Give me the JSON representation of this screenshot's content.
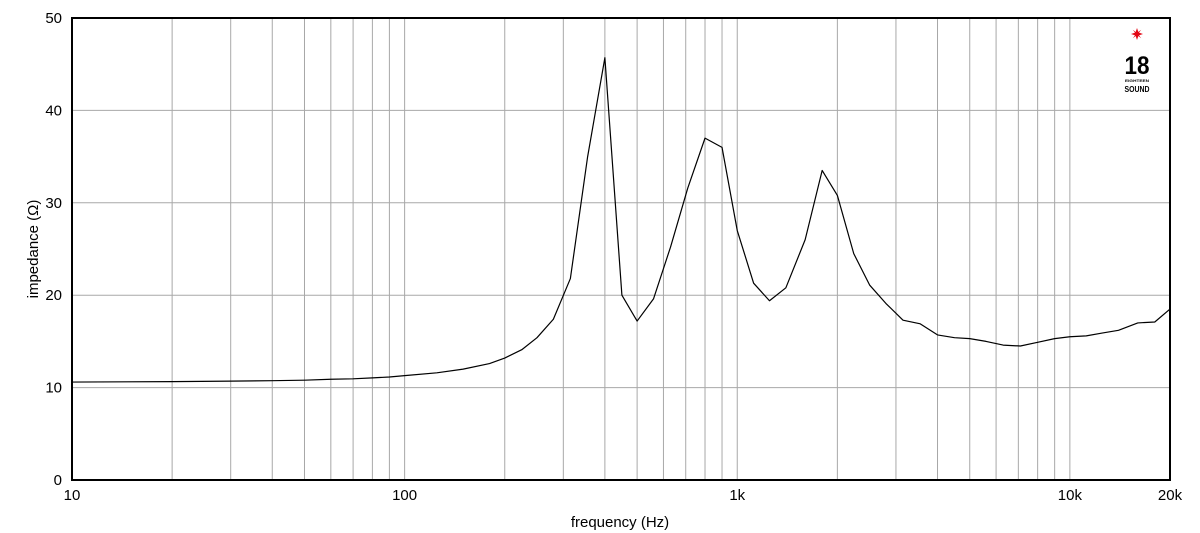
{
  "chart_data": {
    "type": "line",
    "xlabel": "frequency (Hz)",
    "ylabel": "impedance (Ω)",
    "x_scale": "log",
    "xlim": [
      10,
      20000
    ],
    "ylim": [
      0,
      50
    ],
    "grid": true,
    "x_ticks": [
      {
        "value": 10,
        "label": "10"
      },
      {
        "value": 100,
        "label": "100"
      },
      {
        "value": 1000,
        "label": "1k"
      },
      {
        "value": 10000,
        "label": "10k"
      },
      {
        "value": 20000,
        "label": "20k"
      }
    ],
    "y_ticks": [
      {
        "value": 0,
        "label": "0"
      },
      {
        "value": 10,
        "label": "10"
      },
      {
        "value": 20,
        "label": "20"
      },
      {
        "value": 30,
        "label": "30"
      },
      {
        "value": 40,
        "label": "40"
      },
      {
        "value": 50,
        "label": "50"
      }
    ],
    "x_grid": [
      20,
      30,
      40,
      50,
      60,
      70,
      80,
      90,
      100,
      200,
      300,
      400,
      500,
      600,
      700,
      800,
      900,
      1000,
      2000,
      3000,
      4000,
      5000,
      6000,
      7000,
      8000,
      9000,
      10000
    ],
    "y_grid": [
      10,
      20,
      30,
      40
    ],
    "series": [
      {
        "color": "#000000",
        "x": [
          10,
          20,
          30,
          40,
          50,
          60,
          70,
          80,
          90,
          100,
          125,
          150,
          180,
          200,
          225,
          250,
          280,
          315,
          355,
          400,
          450,
          500,
          560,
          630,
          710,
          800,
          900,
          1000,
          1120,
          1250,
          1400,
          1600,
          1800,
          2000,
          2240,
          2500,
          2800,
          3150,
          3550,
          4000,
          4500,
          5000,
          5600,
          6300,
          7100,
          8000,
          9000,
          10000,
          11200,
          12500,
          14000,
          16000,
          18000,
          20000
        ],
        "y": [
          10.6,
          10.65,
          10.7,
          10.75,
          10.8,
          10.9,
          10.95,
          11.05,
          11.15,
          11.3,
          11.6,
          12.0,
          12.6,
          13.2,
          14.1,
          15.4,
          17.4,
          21.8,
          35.0,
          45.7,
          20.0,
          17.2,
          19.6,
          25.2,
          31.6,
          37.0,
          36.0,
          27.0,
          21.3,
          19.4,
          20.8,
          26.0,
          33.5,
          30.8,
          24.5,
          21.1,
          19.1,
          17.3,
          16.9,
          15.7,
          15.4,
          15.3,
          15.0,
          14.6,
          14.5,
          14.9,
          15.3,
          15.5,
          15.6,
          15.9,
          16.2,
          17.0,
          17.1,
          18.5
        ]
      }
    ]
  },
  "logo": {
    "number": "18",
    "line1": "EIGHTEEN",
    "line2": "SOUND",
    "star_color": "#e30613"
  }
}
